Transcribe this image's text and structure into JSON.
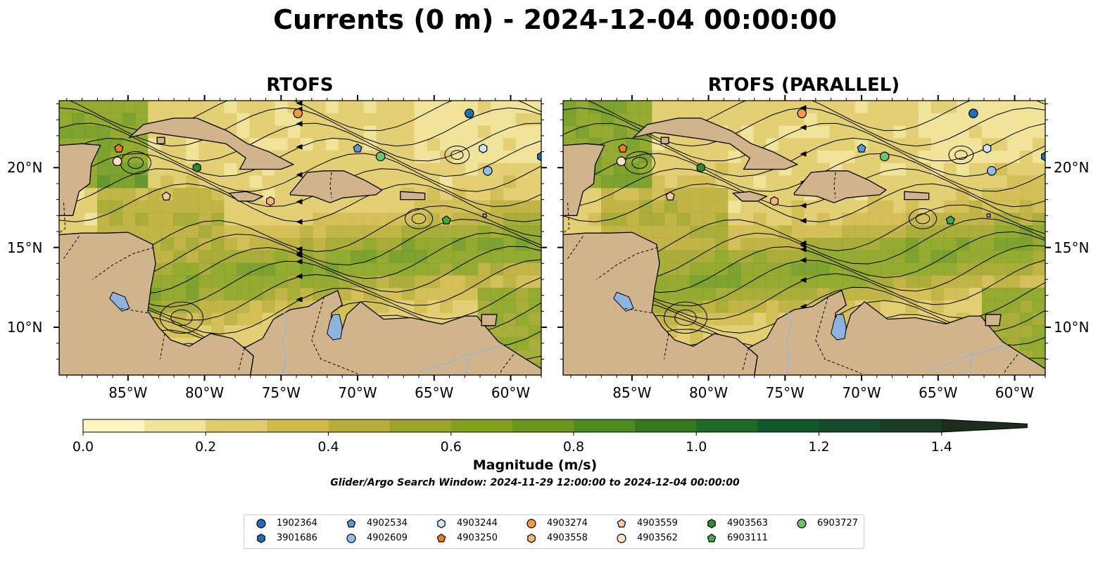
{
  "title": "Currents (0 m) - 2024-12-04 00:00:00",
  "panels": [
    {
      "title": "RTOFS"
    },
    {
      "title": "RTOFS (PARALLEL)"
    }
  ],
  "lon_ticks": [
    "85°W",
    "80°W",
    "75°W",
    "70°W",
    "65°W",
    "60°W"
  ],
  "lat_ticks": [
    "20°N",
    "15°N",
    "10°N"
  ],
  "colorbar": {
    "label": "Magnitude (m/s)",
    "ticks": [
      "0.0",
      "0.2",
      "0.4",
      "0.6",
      "0.8",
      "1.0",
      "1.2",
      "1.4"
    ],
    "min": 0.0,
    "max": 1.5,
    "step": 0.1,
    "colors": [
      "#fdf6c0",
      "#f0e39a",
      "#e0cc6e",
      "#cfba4c",
      "#b8ad38",
      "#9ca52a",
      "#84a11e",
      "#6a961c",
      "#4f8a1e",
      "#35791f",
      "#1f6b26",
      "#11592a",
      "#154a2a",
      "#1a3b24",
      "#1b2d1b"
    ],
    "extend": "max"
  },
  "search_window": "Glider/Argo Search Window: 2024-11-29 12:00:00 to 2024-12-04 00:00:00",
  "colors": {
    "land": "#d2b48c",
    "lake": "#8fb2de",
    "river": "#9fb6cc"
  },
  "legend": [
    {
      "label": "1902364",
      "marker": "circle",
      "color": "#1f6fb5"
    },
    {
      "label": "3901686",
      "marker": "hexagon",
      "color": "#1f6fb5"
    },
    {
      "label": "4902534",
      "marker": "pentagon",
      "color": "#5b9bd5"
    },
    {
      "label": "4902609",
      "marker": "circle",
      "color": "#8fc0ea"
    },
    {
      "label": "4903244",
      "marker": "hexagon",
      "color": "#cde6f8"
    },
    {
      "label": "4903250",
      "marker": "pentagon",
      "color": "#f07f12"
    },
    {
      "label": "4903274",
      "marker": "circle",
      "color": "#f29a45"
    },
    {
      "label": "4903558",
      "marker": "hexagon",
      "color": "#f7b477"
    },
    {
      "label": "4903559",
      "marker": "pentagon",
      "color": "#f9c7a0"
    },
    {
      "label": "4903562",
      "marker": "circle",
      "color": "#fde0c8"
    },
    {
      "label": "4903563",
      "marker": "hexagon",
      "color": "#2e8b2e"
    },
    {
      "label": "6903111",
      "marker": "pentagon",
      "color": "#47a847"
    },
    {
      "label": "6903727",
      "marker": "circle",
      "color": "#6cc46c"
    }
  ],
  "floats": [
    {
      "id": "1902364",
      "lon": -62.7,
      "lat": 23.4
    },
    {
      "id": "3901686",
      "lon": -58.0,
      "lat": 20.7
    },
    {
      "id": "4902534",
      "lon": -70.0,
      "lat": 21.2
    },
    {
      "id": "4902609",
      "lon": -61.5,
      "lat": 19.8
    },
    {
      "id": "4903244",
      "lon": -61.8,
      "lat": 21.2
    },
    {
      "id": "4903250",
      "lon": -85.6,
      "lat": 21.2
    },
    {
      "id": "4903274",
      "lon": -73.9,
      "lat": 23.4
    },
    {
      "id": "4903558",
      "lon": -75.7,
      "lat": 17.9
    },
    {
      "id": "4903559",
      "lon": -82.5,
      "lat": 18.2
    },
    {
      "id": "4903562",
      "lon": -85.7,
      "lat": 20.4
    },
    {
      "id": "4903563",
      "lon": -80.5,
      "lat": 20.0
    },
    {
      "id": "6903111",
      "lon": -64.2,
      "lat": 16.7
    },
    {
      "id": "6903727",
      "lon": -68.5,
      "lat": 20.7
    }
  ]
}
